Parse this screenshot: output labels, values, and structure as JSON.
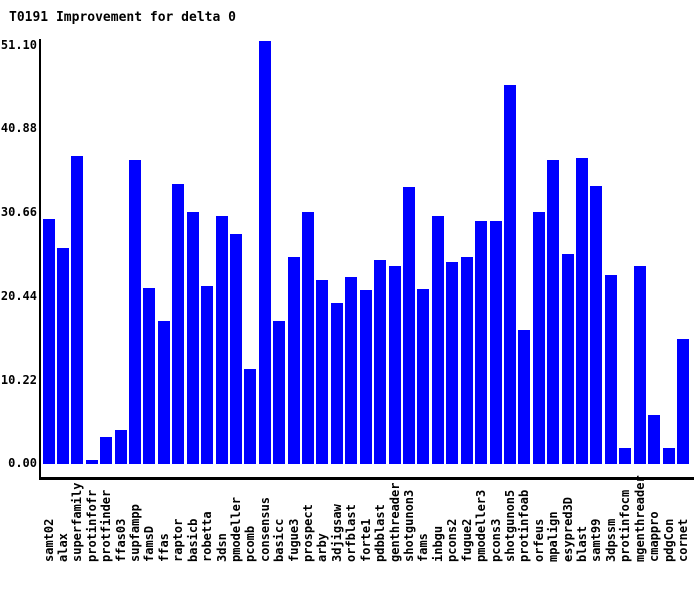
{
  "title": "T0191 Improvement for delta 0",
  "colors": {
    "bar": "#0000ff",
    "axis": "#000000",
    "text": "#000000",
    "background": "#ffffff"
  },
  "chart_data": {
    "type": "bar",
    "title": "T0191 Improvement for delta 0",
    "xlabel": "",
    "ylabel": "",
    "ylim": [
      0,
      51.1
    ],
    "yticks": [
      "0.00",
      "10.22",
      "20.44",
      "30.66",
      "40.88",
      "51.10"
    ],
    "grid": false,
    "legend": "none",
    "bar_color": "#0000ff",
    "categories": [
      "samt02",
      "alax",
      "superfamily",
      "protinfofr",
      "protfinder",
      "ffas03",
      "supfampp",
      "famsD",
      "ffas",
      "raptor",
      "basicb",
      "robetta",
      "3dsn",
      "pmodeller",
      "pcomb",
      "consensus",
      "basicc",
      "fugue3",
      "prospect",
      "arby",
      "3djigsaw",
      "orfblast",
      "forte1",
      "pdbblast",
      "genthreader",
      "shotgunon3",
      "fams",
      "inbgu",
      "pcons2",
      "fugue2",
      "pmodeller3",
      "pcons3",
      "shotgunon5",
      "protinfoab",
      "orfeus",
      "mpalign",
      "esypred3D",
      "blast",
      "samt99",
      "3dpssm",
      "protinfocm",
      "mgenthreader",
      "cmappro",
      "pdgCon",
      "cornet"
    ],
    "values": [
      29.9,
      26.3,
      37.6,
      0.5,
      3.3,
      4.2,
      37.1,
      21.5,
      17.4,
      34.2,
      30.7,
      21.7,
      30.3,
      28.1,
      11.6,
      51.6,
      17.5,
      25.2,
      30.7,
      22.5,
      19.6,
      22.8,
      21.2,
      24.9,
      24.2,
      33.8,
      21.4,
      30.3,
      24.7,
      25.2,
      29.6,
      29.6,
      46.3,
      16.4,
      30.7,
      37.1,
      25.6,
      37.3,
      33.9,
      23.1,
      2.0,
      24.2,
      6.0,
      2.0,
      15.2
    ]
  }
}
